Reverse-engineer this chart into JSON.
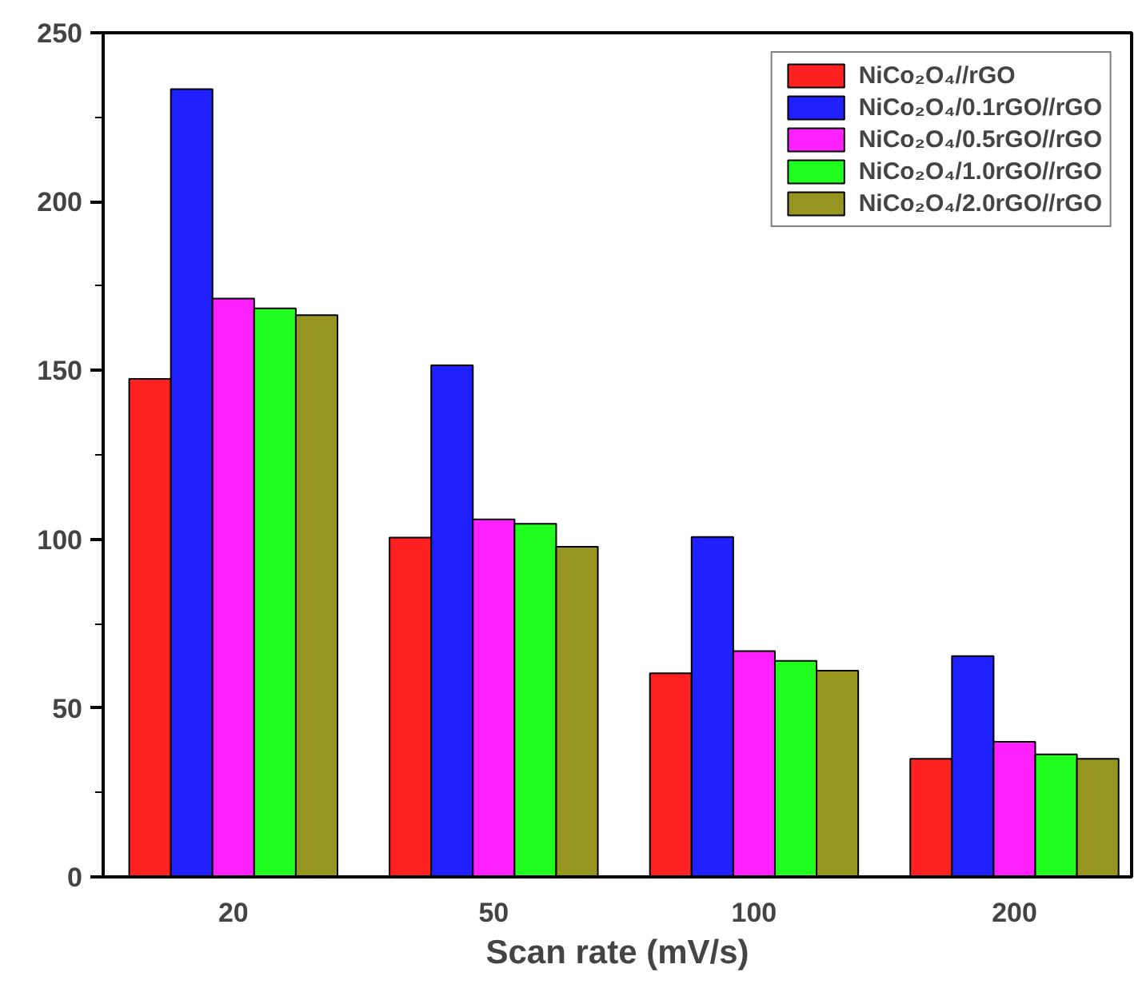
{
  "chart_data": {
    "type": "bar",
    "xlabel": "Scan rate (mV/s)",
    "categories": [
      "20",
      "50",
      "100",
      "200"
    ],
    "series": [
      {
        "name": "NiCo₂O₄//rGO",
        "color": "#ff2020",
        "values": [
          147.5,
          100.5,
          60.3,
          35
        ]
      },
      {
        "name": "NiCo₂O₄/0.1rGO//rGO",
        "color": "#2020ff",
        "values": [
          233.3,
          151.5,
          100.7,
          65.4
        ]
      },
      {
        "name": "NiCo₂O₄/0.5rGO//rGO",
        "color": "#ff20ff",
        "values": [
          171.3,
          105.9,
          66.9,
          40
        ]
      },
      {
        "name": "NiCo₂O₄/1.0rGO//rGO",
        "color": "#20ff20",
        "values": [
          168.4,
          104.6,
          64,
          36.3
        ]
      },
      {
        "name": "NiCo₂O₄/2.0rGO//rGO",
        "color": "#959520",
        "values": [
          166.4,
          97.8,
          61.1,
          35
        ]
      }
    ],
    "ylim": [
      0,
      250
    ],
    "yticks": [
      0,
      50,
      100,
      150,
      200,
      250
    ],
    "grid": false,
    "legend": "top right"
  }
}
